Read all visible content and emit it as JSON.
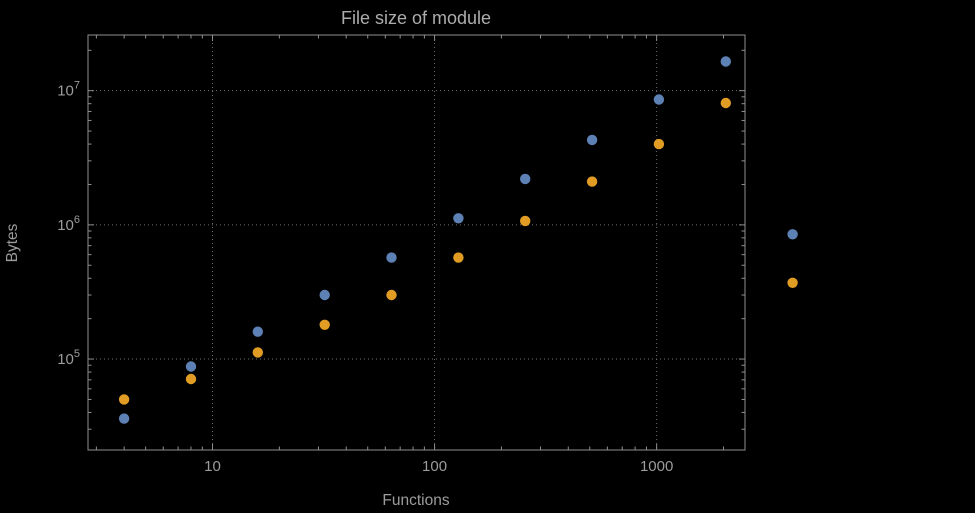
{
  "chart_data": {
    "type": "scatter",
    "title": "File size of module",
    "xlabel": "Functions",
    "ylabel": "Bytes",
    "x_scale": "log",
    "y_scale": "log",
    "xlim": [
      2.75,
      2500
    ],
    "ylim": [
      21000,
      26000000
    ],
    "x_ticks": [
      10,
      100,
      1000
    ],
    "y_ticks": [
      100000,
      1000000,
      10000000
    ],
    "grid": "dotted",
    "legend": "none",
    "series": [
      {
        "name": "blue-series",
        "color": "#5e81b5",
        "points": [
          [
            4,
            36000
          ],
          [
            8,
            88000
          ],
          [
            16,
            160000
          ],
          [
            32,
            300000
          ],
          [
            64,
            570000
          ],
          [
            128,
            1120000
          ],
          [
            256,
            2200000
          ],
          [
            512,
            4300000
          ],
          [
            1024,
            8600000
          ],
          [
            2048,
            16500000
          ],
          [
            4096,
            850000
          ]
        ]
      },
      {
        "name": "orange-series",
        "color": "#e19c24",
        "points": [
          [
            4,
            50000
          ],
          [
            8,
            71000
          ],
          [
            16,
            112000
          ],
          [
            32,
            180000
          ],
          [
            64,
            300000
          ],
          [
            128,
            570000
          ],
          [
            256,
            1070000
          ],
          [
            512,
            2100000
          ],
          [
            1024,
            4000000
          ],
          [
            2048,
            8100000
          ],
          [
            4096,
            370000
          ]
        ]
      }
    ]
  },
  "colors": {
    "background": "#000000",
    "frame": "#8f8f8f",
    "grid": "#6e6e6e",
    "text": "#9c9c9c",
    "title": "#acacac"
  }
}
